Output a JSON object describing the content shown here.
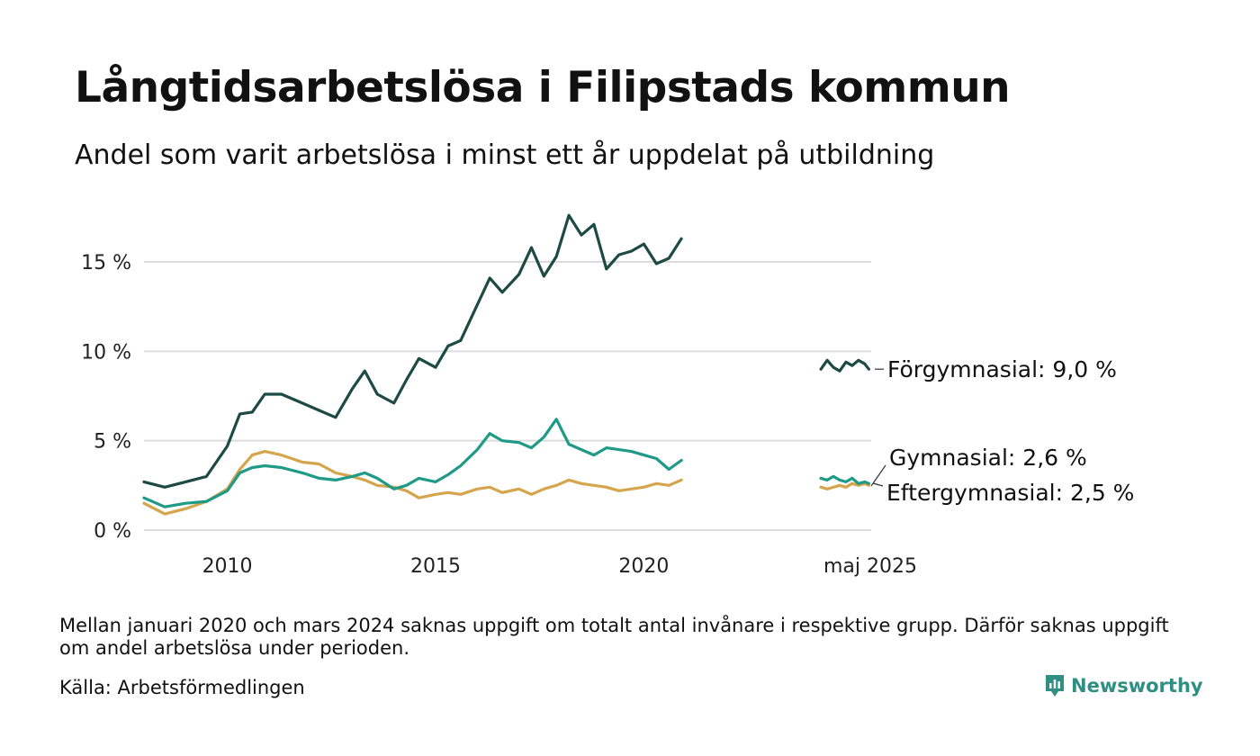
{
  "header": {
    "title": "Långtidsarbetslösa i Filipstads kommun",
    "subtitle": "Andel som varit arbetslösa i minst ett år uppdelat på utbildning"
  },
  "footer": {
    "note": "Mellan januari 2020 och mars 2024 saknas uppgift om totalt antal invånare i respektive grupp. Därför saknas uppgift om andel arbetslösa under perioden.",
    "source": "Källa: Arbetsförmedlingen",
    "brand": "Newsworthy",
    "brand_color": "#2f8f82"
  },
  "chart_data": {
    "type": "line",
    "title": "Långtidsarbetslösa i Filipstads kommun",
    "subtitle": "Andel som varit arbetslösa i minst ett år uppdelat på utbildning",
    "ylim": [
      0,
      18
    ],
    "yticks": [
      0,
      5,
      10,
      15
    ],
    "ytick_labels": [
      "0 %",
      "5 %",
      "10 %",
      "15 %"
    ],
    "xticks": [
      2010,
      2015,
      2020
    ],
    "xtick_labels": [
      "2010",
      "2015",
      "2020"
    ],
    "latest_label": "maj 2025",
    "grid": true,
    "legend": "direct labels at right end",
    "series": [
      {
        "name": "Förgymnasial",
        "label": "Förgymnasial: 9,0 %",
        "color": "#1d4a44",
        "segments": [
          {
            "x": [
              2008.0,
              2008.5,
              2009.0,
              2009.5,
              2010.0,
              2010.3,
              2010.6,
              2010.9,
              2011.3,
              2011.8,
              2012.2,
              2012.6,
              2013.0,
              2013.3,
              2013.6,
              2014.0,
              2014.3,
              2014.6,
              2015.0,
              2015.3,
              2015.6,
              2016.0,
              2016.3,
              2016.6,
              2017.0,
              2017.3,
              2017.6,
              2017.9,
              2018.2,
              2018.5,
              2018.8,
              2019.1,
              2019.4,
              2019.7,
              2020.0,
              2020.3,
              2020.6,
              2020.9
            ],
            "y": [
              2.7,
              2.4,
              2.7,
              3.0,
              4.7,
              6.5,
              6.6,
              7.6,
              7.6,
              7.1,
              6.7,
              6.3,
              7.9,
              8.9,
              7.6,
              7.1,
              8.4,
              9.6,
              9.1,
              10.3,
              10.6,
              12.6,
              14.1,
              13.3,
              14.3,
              15.8,
              14.2,
              15.3,
              17.6,
              16.5,
              17.1,
              14.6,
              15.4,
              15.6,
              16.0,
              14.9,
              15.2,
              16.3
            ]
          },
          {
            "x": [
              2024.25,
              2024.4,
              2024.55,
              2024.7,
              2024.85,
              2025.0,
              2025.15,
              2025.3,
              2025.4
            ],
            "y": [
              9.0,
              9.5,
              9.1,
              8.9,
              9.4,
              9.2,
              9.5,
              9.3,
              9.0
            ]
          }
        ]
      },
      {
        "name": "Gymnasial",
        "label": "Gymnasial: 2,6 %",
        "color": "#1e9a86",
        "segments": [
          {
            "x": [
              2008.0,
              2008.5,
              2009.0,
              2009.5,
              2010.0,
              2010.3,
              2010.6,
              2010.9,
              2011.3,
              2011.8,
              2012.2,
              2012.6,
              2013.0,
              2013.3,
              2013.6,
              2014.0,
              2014.3,
              2014.6,
              2015.0,
              2015.3,
              2015.6,
              2016.0,
              2016.3,
              2016.6,
              2017.0,
              2017.3,
              2017.6,
              2017.9,
              2018.2,
              2018.5,
              2018.8,
              2019.1,
              2019.4,
              2019.7,
              2020.0,
              2020.3,
              2020.6,
              2020.9
            ],
            "y": [
              1.8,
              1.3,
              1.5,
              1.6,
              2.2,
              3.2,
              3.5,
              3.6,
              3.5,
              3.2,
              2.9,
              2.8,
              3.0,
              3.2,
              2.9,
              2.3,
              2.5,
              2.9,
              2.7,
              3.1,
              3.6,
              4.5,
              5.4,
              5.0,
              4.9,
              4.6,
              5.2,
              6.2,
              4.8,
              4.5,
              4.2,
              4.6,
              4.5,
              4.4,
              4.2,
              4.0,
              3.4,
              3.9
            ]
          },
          {
            "x": [
              2024.25,
              2024.4,
              2024.55,
              2024.7,
              2024.85,
              2025.0,
              2025.15,
              2025.3,
              2025.4
            ],
            "y": [
              2.9,
              2.8,
              3.0,
              2.8,
              2.7,
              2.9,
              2.6,
              2.7,
              2.6
            ]
          }
        ]
      },
      {
        "name": "Eftergymnasial",
        "label": "Eftergymnasial: 2,5 %",
        "color": "#d4a54c",
        "segments": [
          {
            "x": [
              2008.0,
              2008.5,
              2009.0,
              2009.5,
              2010.0,
              2010.3,
              2010.6,
              2010.9,
              2011.3,
              2011.8,
              2012.2,
              2012.6,
              2013.0,
              2013.3,
              2013.6,
              2014.0,
              2014.3,
              2014.6,
              2015.0,
              2015.3,
              2015.6,
              2016.0,
              2016.3,
              2016.6,
              2017.0,
              2017.3,
              2017.6,
              2017.9,
              2018.2,
              2018.5,
              2018.8,
              2019.1,
              2019.4,
              2019.7,
              2020.0,
              2020.3,
              2020.6,
              2020.9
            ],
            "y": [
              1.5,
              0.9,
              1.2,
              1.6,
              2.3,
              3.4,
              4.2,
              4.4,
              4.2,
              3.8,
              3.7,
              3.2,
              3.0,
              2.8,
              2.5,
              2.4,
              2.2,
              1.8,
              2.0,
              2.1,
              2.0,
              2.3,
              2.4,
              2.1,
              2.3,
              2.0,
              2.3,
              2.5,
              2.8,
              2.6,
              2.5,
              2.4,
              2.2,
              2.3,
              2.4,
              2.6,
              2.5,
              2.8
            ]
          },
          {
            "x": [
              2024.25,
              2024.4,
              2024.55,
              2024.7,
              2024.85,
              2025.0,
              2025.15,
              2025.3,
              2025.4
            ],
            "y": [
              2.4,
              2.3,
              2.4,
              2.5,
              2.4,
              2.6,
              2.5,
              2.6,
              2.5
            ]
          }
        ]
      }
    ]
  }
}
